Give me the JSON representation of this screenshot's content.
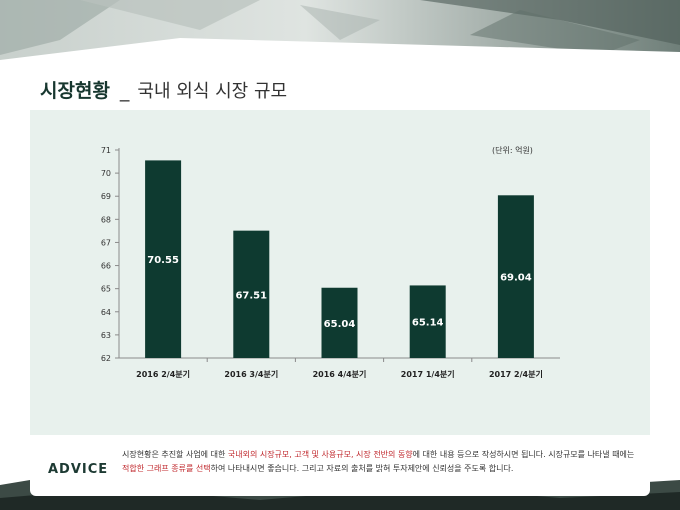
{
  "page": {
    "title_main": "시장현황",
    "title_sep": "_",
    "title_sub": "국내 외식 시장 규모"
  },
  "chart_data": {
    "type": "bar",
    "categories": [
      "2016 2/4분기",
      "2016 3/4분기",
      "2016 4/4분기",
      "2017 1/4분기",
      "2017 2/4분기"
    ],
    "values": [
      70.55,
      67.51,
      65.04,
      65.14,
      69.04
    ],
    "value_labels": [
      "70.55",
      "67.51",
      "65.04",
      "65.14",
      "69.04"
    ],
    "ylim": [
      62,
      71
    ],
    "yticks": [
      62,
      63,
      64,
      65,
      66,
      67,
      68,
      69,
      70,
      71
    ],
    "unit_label": "(단위: 억원)",
    "grid": false,
    "legend": "none",
    "bar_color": "#0e3a30",
    "label_color": "#ffffff"
  },
  "advice": {
    "title": "ADVICE",
    "segments": [
      {
        "text": "시장현황은 추진할 사업에 대한 ",
        "hl": false
      },
      {
        "text": "국내외의 시장규모, 고객 및 사용규모, 시장 전반의 동향",
        "hl": true
      },
      {
        "text": "에 대한 내용 등으로 작성하시면 됩니다. 시장규모를 나타낼 때에는 ",
        "hl": false
      },
      {
        "text": "적합한 그래프 종류를 선택",
        "hl": true
      },
      {
        "text": "하여 나타내시면 좋습니다. 그리고 자료의 출처를 밝혀 투자제안에 신뢰성을 주도록 합니다.",
        "hl": false
      }
    ],
    "highlight_color": "#c0282d"
  }
}
